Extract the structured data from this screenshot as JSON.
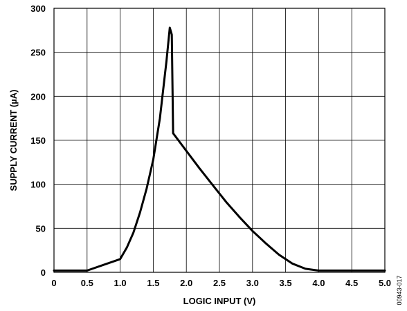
{
  "chart_data": {
    "type": "line",
    "title": "",
    "xlabel": "LOGIC INPUT (V)",
    "ylabel": "SUPPLY CURRENT (µA)",
    "xlim": [
      0,
      5
    ],
    "ylim": [
      0,
      300
    ],
    "x_ticks": [
      "0",
      "0.5",
      "1.0",
      "1.5",
      "2.0",
      "2.5",
      "3.0",
      "3.5",
      "4.0",
      "4.5",
      "5.0"
    ],
    "y_ticks": [
      "0",
      "50",
      "100",
      "150",
      "200",
      "250",
      "300"
    ],
    "grid": true,
    "legend": "none",
    "line_color": "#000000",
    "series": [
      {
        "x": [
          0,
          0.5,
          1.0,
          1.1,
          1.2,
          1.3,
          1.4,
          1.5,
          1.6,
          1.7,
          1.75,
          1.78,
          1.8,
          1.9,
          2.0,
          2.2,
          2.4,
          2.6,
          2.8,
          3.0,
          3.2,
          3.4,
          3.6,
          3.8,
          4.0,
          4.5,
          5.0
        ],
        "y": [
          2,
          2,
          15,
          28,
          45,
          68,
          95,
          128,
          175,
          240,
          278,
          270,
          158,
          148,
          138,
          118,
          99,
          80,
          63,
          47,
          33,
          20,
          10,
          4,
          2,
          2,
          2
        ]
      }
    ]
  },
  "figure_id": "00943-017"
}
